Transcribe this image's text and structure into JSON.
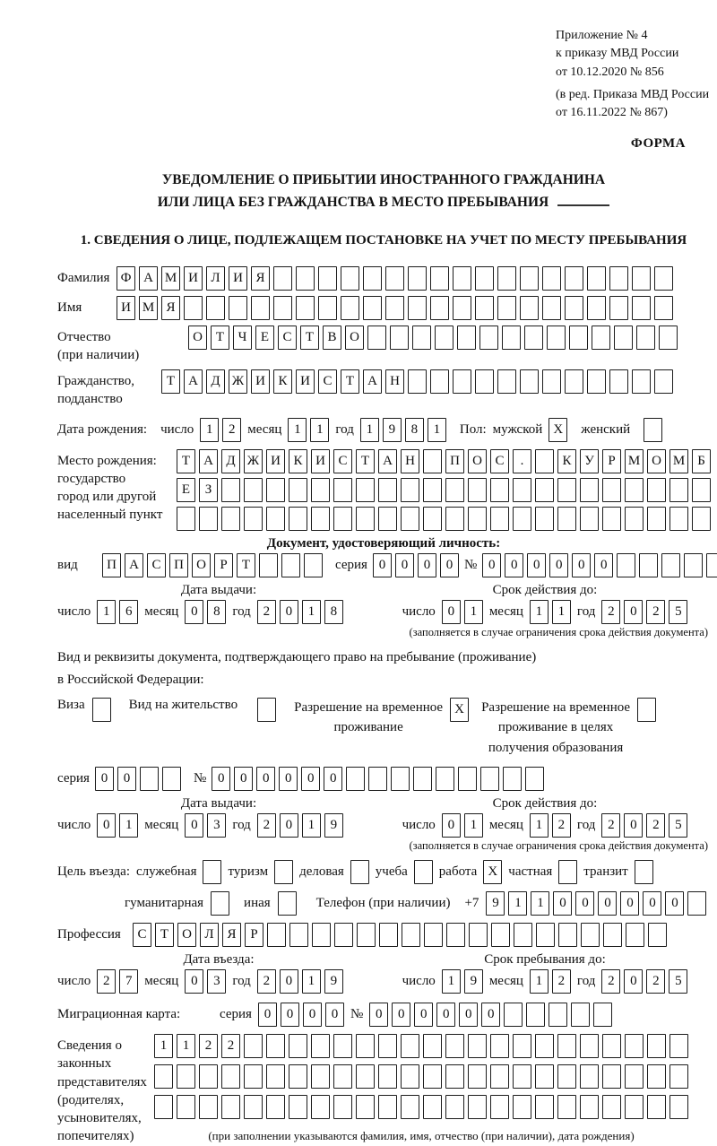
{
  "header": {
    "appendix_line1": "Приложение № 4",
    "appendix_line2": "к приказу МВД России",
    "appendix_line3": "от 10.12.2020 № 856",
    "edition_line1": "(в ред. Приказа МВД России",
    "edition_line2": "от 16.11.2022 № 867)",
    "form_label": "ФОРМА"
  },
  "title": {
    "line1": "УВЕДОМЛЕНИЕ О ПРИБЫТИИ ИНОСТРАННОГО ГРАЖДАНИНА",
    "line2": "ИЛИ ЛИЦА БЕЗ ГРАЖДАНСТВА В МЕСТО ПРЕБЫВАНИЯ"
  },
  "section1_heading": "1. СВЕДЕНИЯ О ЛИЦЕ, ПОДЛЕЖАЩЕМ ПОСТАНОВКЕ НА УЧЕТ ПО МЕСТУ ПРЕБЫВАНИЯ",
  "date_labels": {
    "day": "число",
    "month": "месяц",
    "year": "год"
  },
  "surname": {
    "label": "Фамилия",
    "strip": {
      "t": "ФАМИЛИЯ",
      "n": 25
    }
  },
  "given_name": {
    "label": "Имя",
    "strip": {
      "t": "ИМЯ",
      "n": 25
    }
  },
  "patronymic": {
    "label_line1": "Отчество",
    "label_line2": "(при наличии)",
    "strip": {
      "t": "ОТЧЕСТВО",
      "n": 22
    }
  },
  "citizenship": {
    "label_line1": "Гражданство,",
    "label_line2": "подданство",
    "strip": {
      "t": "ТАДЖИКИСТАН",
      "n": 23
    }
  },
  "birth_date": {
    "label": "Дата рождения:",
    "day": {
      "t": "12",
      "n": 2
    },
    "month": {
      "t": "11",
      "n": 2
    },
    "year": {
      "t": "1981",
      "n": 4
    },
    "sex_label": "Пол:",
    "male_label": "мужской",
    "male_box": "X",
    "female_label": "женский",
    "female_box": ""
  },
  "birth_place": {
    "label_line1": "Место рождения:",
    "label_line2": "государство",
    "label_line3": "город или другой",
    "label_line4": "населенный пункт",
    "row1": {
      "t": "ТАДЖИКИСТАН ПОС. КУРМОМБ",
      "n": 24
    },
    "row2": {
      "t": "ЕЗ",
      "n": 24
    },
    "row3": {
      "t": "",
      "n": 24
    }
  },
  "identity_doc": {
    "heading": "Документ, удостоверяющий личность:",
    "kind_label": "вид",
    "kind": {
      "t": "ПАСПОРТ",
      "n": 10
    },
    "series_label": "серия",
    "series": {
      "t": "0000",
      "n": 4
    },
    "number_label": "№",
    "number": {
      "t": "000000",
      "n": 11
    },
    "issue_heading": "Дата выдачи:",
    "issue_day": {
      "t": "16",
      "n": 2
    },
    "issue_month": {
      "t": "08",
      "n": 2
    },
    "issue_year": {
      "t": "2018",
      "n": 4
    },
    "valid_heading": "Срок действия до:",
    "valid_day": {
      "t": "01",
      "n": 2
    },
    "valid_month": {
      "t": "11",
      "n": 2
    },
    "valid_year": {
      "t": "2025",
      "n": 4
    },
    "valid_note": "(заполняется в случае ограничения срока действия документа)"
  },
  "residence_doc": {
    "intro_line1": "Вид и реквизиты документа, подтверждающего право на пребывание (проживание)",
    "intro_line2": "в Российской Федерации:",
    "visa_label": "Виза",
    "visa_box": "",
    "residence_permit_label": "Вид на жительство",
    "residence_permit_box": "",
    "temp_permit_line1": "Разрешение на временное",
    "temp_permit_line2": "проживание",
    "temp_permit_box": "X",
    "edu_permit_line1": "Разрешение на временное",
    "edu_permit_line2": "проживание в целях",
    "edu_permit_line3": "получения образования",
    "edu_permit_box": "",
    "series_label": "серия",
    "series": {
      "t": "00",
      "n": 4
    },
    "number_label": "№",
    "number": {
      "t": "000000",
      "n": 15
    },
    "issue_heading": "Дата выдачи:",
    "issue_day": {
      "t": "01",
      "n": 2
    },
    "issue_month": {
      "t": "03",
      "n": 2
    },
    "issue_year": {
      "t": "2019",
      "n": 4
    },
    "valid_heading": "Срок действия до:",
    "valid_day": {
      "t": "01",
      "n": 2
    },
    "valid_month": {
      "t": "12",
      "n": 2
    },
    "valid_year": {
      "t": "2025",
      "n": 4
    },
    "valid_note": "(заполняется в случае ограничения срока действия документа)"
  },
  "visit_purpose": {
    "label": "Цель въезда:",
    "options_row1": [
      {
        "label": "служебная",
        "box": ""
      },
      {
        "label": "туризм",
        "box": ""
      },
      {
        "label": "деловая",
        "box": ""
      },
      {
        "label": "учеба",
        "box": ""
      },
      {
        "label": "работа",
        "box": "X"
      },
      {
        "label": "частная",
        "box": ""
      },
      {
        "label": "транзит",
        "box": ""
      }
    ],
    "options_row2": [
      {
        "label": "гуманитарная",
        "box": ""
      },
      {
        "label": "иная",
        "box": ""
      }
    ],
    "phone_label": "Телефон (при наличии)",
    "phone_prefix": "+7",
    "phone": {
      "t": "911000000",
      "n": 10
    }
  },
  "profession": {
    "label": "Профессия",
    "strip": {
      "t": "СТОЛЯР",
      "n": 24
    }
  },
  "entry_dates": {
    "entry_heading": "Дата въезда:",
    "entry_day": {
      "t": "27",
      "n": 2
    },
    "entry_month": {
      "t": "03",
      "n": 2
    },
    "entry_year": {
      "t": "2019",
      "n": 4
    },
    "stay_heading": "Срок пребывания до:",
    "stay_day": {
      "t": "19",
      "n": 2
    },
    "stay_month": {
      "t": "12",
      "n": 2
    },
    "stay_year": {
      "t": "2025",
      "n": 4
    }
  },
  "migration_card": {
    "label": "Миграционная карта:",
    "series_label": "серия",
    "series": {
      "t": "0000",
      "n": 4
    },
    "number_label": "№",
    "number": {
      "t": "000000",
      "n": 11
    }
  },
  "legal_reps": {
    "label_line1": "Сведения о",
    "label_line2": "законных",
    "label_line3": "представителях",
    "label_line4": "(родителях,",
    "label_line5": "усыновителях,",
    "label_line6": "попечителях)",
    "row1": {
      "t": "1122",
      "n": 24
    },
    "row2": {
      "t": "",
      "n": 24
    },
    "row3": {
      "t": "",
      "n": 24
    },
    "note": "(при заполнении указываются фамилия, имя, отчество (при наличии), дата рождения)"
  }
}
